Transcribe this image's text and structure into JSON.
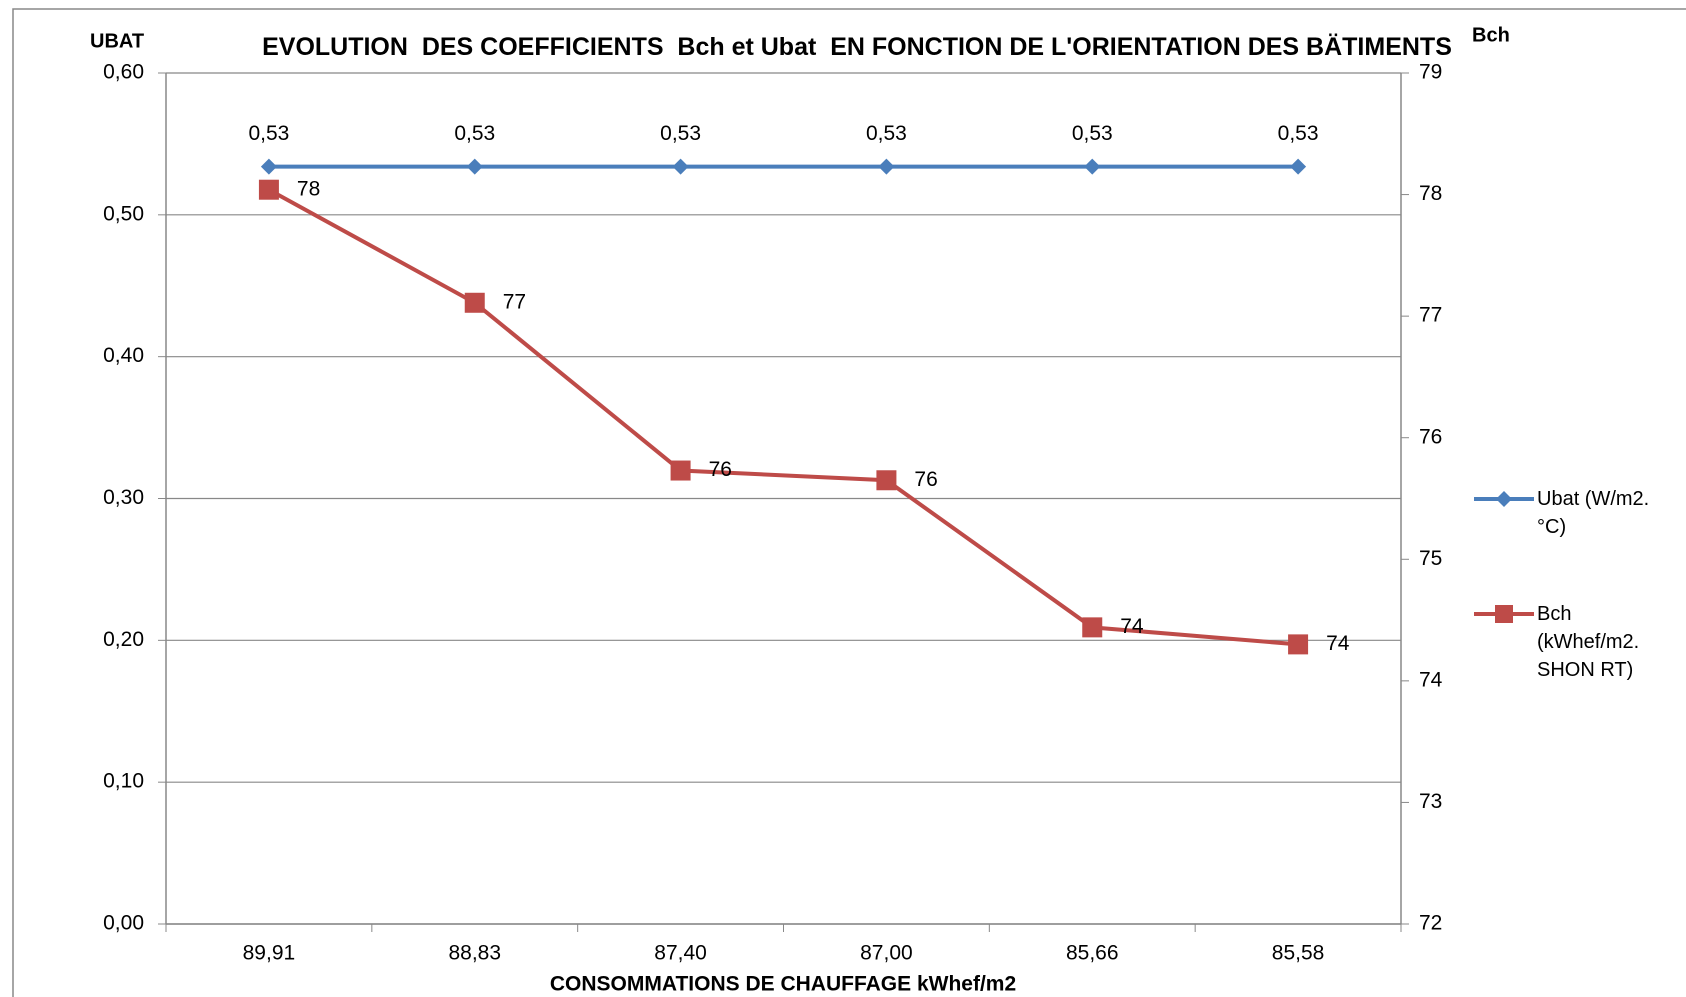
{
  "chart_data": {
    "type": "line",
    "title": "EVOLUTION  DES COEFFICIENTS  Bch et Ubat  EN FONCTION DE L'ORIENTATION DES BÄTIMENTS",
    "x_label": "CONSOMMATIONS DE CHAUFFAGE  kWhef/m2",
    "y_label": "UBAT",
    "y2_label": "Bch",
    "categories": [
      "89,91",
      "88,83",
      "87,40",
      "87,00",
      "85,66",
      "85,58"
    ],
    "series": [
      {
        "name": "Ubat (W/m2.°C)",
        "color": "#4a7ebb",
        "marker": "diamond",
        "values": [
          0.534,
          0.534,
          0.534,
          0.534,
          0.534,
          0.534
        ],
        "value_labels": [
          "0,53",
          "0,53",
          "0,53",
          "0,53",
          "0,53",
          "0,53"
        ]
      },
      {
        "name": "Bch (kWhef/m2. SHON RT)",
        "color": "#be4b48",
        "marker": "square",
        "axis": "y2",
        "values": [
          78.04,
          77.11,
          75.73,
          75.65,
          74.44,
          74.3
        ],
        "value_labels": [
          "78",
          "77",
          "76",
          "76",
          "74",
          "74"
        ]
      }
    ],
    "ylim": [
      0,
      0.6
    ],
    "yticks": [
      {
        "value": 0,
        "label": "0,00"
      },
      {
        "value": 0.1,
        "label": "0,10"
      },
      {
        "value": 0.2,
        "label": "0,20"
      },
      {
        "value": 0.3,
        "label": "0,30"
      },
      {
        "value": 0.4,
        "label": "0,40"
      },
      {
        "value": 0.5,
        "label": "0,50"
      },
      {
        "value": 0.6,
        "label": "0,60"
      }
    ],
    "y2lim": [
      72,
      79
    ],
    "y2ticks": [
      72,
      73,
      74,
      75,
      76,
      77,
      78,
      79
    ],
    "grid": true,
    "legend": "right"
  }
}
